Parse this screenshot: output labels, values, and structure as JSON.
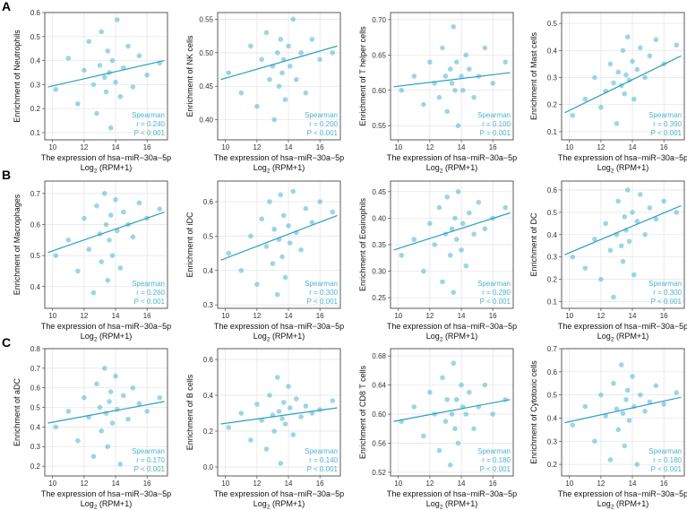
{
  "chart_data": [
    {
      "type": "scatter",
      "panel": "A",
      "ylabel": "Enrichment of Neutrophils",
      "xlabel": "The expression of hsa−miR−30a−5p",
      "xlabel_2": {
        "base": "Log",
        "sub": "2",
        "rest": " (RPM+1)"
      },
      "stat_method": "Spearman",
      "stat_r": "r = 0.240",
      "stat_p": "P < 0.001",
      "color": "#4fb3cf",
      "line_color": "#2a9fc6",
      "xlim": [
        9.5,
        17.3
      ],
      "xticks": [
        10,
        12,
        14,
        16
      ],
      "ylim": [
        0.07,
        0.6
      ],
      "yticks": [
        0.1,
        0.2,
        0.3,
        0.4,
        0.5,
        0.6
      ],
      "x": [
        10.2,
        11.0,
        11.6,
        12.0,
        12.3,
        12.6,
        12.8,
        13.0,
        13.1,
        13.3,
        13.4,
        13.5,
        13.6,
        13.7,
        13.8,
        14.0,
        14.1,
        14.3,
        14.5,
        14.8,
        15.1,
        15.5,
        16.0,
        16.8
      ],
      "y": [
        0.28,
        0.41,
        0.22,
        0.36,
        0.48,
        0.3,
        0.18,
        0.38,
        0.52,
        0.33,
        0.27,
        0.44,
        0.35,
        0.12,
        0.4,
        0.31,
        0.57,
        0.25,
        0.37,
        0.46,
        0.29,
        0.42,
        0.34,
        0.39
      ],
      "fit": {
        "x": [
          9.7,
          17.1
        ],
        "y": [
          0.29,
          0.4
        ]
      }
    },
    {
      "type": "scatter",
      "ylabel": "Enrichment of NK cells",
      "xlabel": "The expression of hsa−miR−30a−5p",
      "xlabel_2": {
        "base": "Log",
        "sub": "2",
        "rest": " (RPM+1)"
      },
      "stat_method": "Spearman",
      "stat_r": "r = 0.200",
      "stat_p": "P < 0.001",
      "color": "#4fb3cf",
      "line_color": "#2a9fc6",
      "xlim": [
        9.5,
        17.3
      ],
      "xticks": [
        10,
        12,
        14,
        16
      ],
      "ylim": [
        0.37,
        0.56
      ],
      "yticks": [
        {
          "value": 0.4,
          "label": "0.40"
        },
        0.45,
        {
          "value": 0.5,
          "label": "0.50"
        },
        0.55
      ],
      "x": [
        10.2,
        11.0,
        11.6,
        12.0,
        12.3,
        12.6,
        12.8,
        13.0,
        13.1,
        13.3,
        13.4,
        13.5,
        13.6,
        13.7,
        13.8,
        14.0,
        14.1,
        14.3,
        14.5,
        14.8,
        15.1,
        15.5,
        16.0,
        16.8
      ],
      "y": [
        0.47,
        0.44,
        0.51,
        0.42,
        0.49,
        0.53,
        0.46,
        0.48,
        0.4,
        0.5,
        0.45,
        0.52,
        0.47,
        0.49,
        0.43,
        0.51,
        0.48,
        0.55,
        0.46,
        0.5,
        0.44,
        0.52,
        0.49,
        0.5
      ],
      "fit": {
        "x": [
          9.7,
          17.1
        ],
        "y": [
          0.46,
          0.51
        ]
      }
    },
    {
      "type": "scatter",
      "ylabel": "Enrichment of T helper cells",
      "xlabel": "The expression of hsa−miR−30a−5p",
      "xlabel_2": {
        "base": "Log",
        "sub": "2",
        "rest": " (RPM+1)"
      },
      "stat_method": "Spearman",
      "stat_r": "r = 0.100",
      "stat_p": "P = 0.001",
      "color": "#4fb3cf",
      "line_color": "#2a9fc6",
      "xlim": [
        9.5,
        17.3
      ],
      "xticks": [
        10,
        12,
        14,
        16
      ],
      "ylim": [
        0.53,
        0.71
      ],
      "yticks": [
        0.55,
        {
          "value": 0.6,
          "label": "0.60"
        },
        0.65,
        {
          "value": 0.7,
          "label": "0.70"
        }
      ],
      "x": [
        10.2,
        11.0,
        11.6,
        12.0,
        12.3,
        12.6,
        12.8,
        13.0,
        13.1,
        13.3,
        13.4,
        13.5,
        13.6,
        13.7,
        13.8,
        14.0,
        14.1,
        14.3,
        14.5,
        14.8,
        15.1,
        15.5,
        16.0,
        16.8
      ],
      "y": [
        0.6,
        0.62,
        0.58,
        0.64,
        0.61,
        0.59,
        0.66,
        0.62,
        0.57,
        0.63,
        0.61,
        0.69,
        0.6,
        0.64,
        0.55,
        0.62,
        0.6,
        0.65,
        0.63,
        0.59,
        0.62,
        0.66,
        0.61,
        0.64
      ],
      "fit": {
        "x": [
          9.7,
          17.1
        ],
        "y": [
          0.605,
          0.625
        ]
      }
    },
    {
      "type": "scatter",
      "ylabel": "Enrichment of Mast cells",
      "xlabel": "The expression of hsa−miR−30a−5p",
      "xlabel_2": {
        "base": "Log",
        "sub": "2",
        "rest": " (RPM+1)"
      },
      "stat_method": "Spearman",
      "stat_r": "r = 0.390",
      "stat_p": "P < 0.001",
      "color": "#4fb3cf",
      "line_color": "#2a9fc6",
      "xlim": [
        9.5,
        17.3
      ],
      "xticks": [
        10,
        12,
        14,
        16
      ],
      "ylim": [
        0.07,
        0.54
      ],
      "yticks": [
        0.1,
        0.2,
        0.3,
        0.4,
        0.5
      ],
      "x": [
        10.2,
        11.0,
        11.6,
        12.0,
        12.3,
        12.6,
        12.8,
        13.0,
        13.1,
        13.3,
        13.4,
        13.5,
        13.6,
        13.7,
        13.8,
        14.0,
        14.1,
        14.3,
        14.5,
        14.8,
        15.1,
        15.5,
        16.0,
        16.8
      ],
      "y": [
        0.16,
        0.22,
        0.3,
        0.19,
        0.25,
        0.35,
        0.28,
        0.13,
        0.32,
        0.27,
        0.4,
        0.24,
        0.31,
        0.45,
        0.29,
        0.36,
        0.22,
        0.33,
        0.41,
        0.3,
        0.38,
        0.44,
        0.35,
        0.42
      ],
      "fit": {
        "x": [
          9.7,
          17.1
        ],
        "y": [
          0.17,
          0.38
        ]
      }
    },
    {
      "type": "scatter",
      "panel": "B",
      "ylabel": "Enrichment of Macrophages",
      "xlabel": "The expression of hsa−miR−30a−5p",
      "xlabel_2": {
        "base": "Log",
        "sub": "2",
        "rest": " (RPM+1)"
      },
      "stat_method": "Spearman",
      "stat_r": "r = 0.260",
      "stat_p": "P < 0.001",
      "color": "#4fb3cf",
      "line_color": "#2a9fc6",
      "xlim": [
        9.5,
        17.3
      ],
      "xticks": [
        10,
        12,
        14,
        16
      ],
      "ylim": [
        0.33,
        0.74
      ],
      "yticks": [
        0.4,
        0.5,
        0.6,
        0.7
      ],
      "x": [
        10.2,
        11.0,
        11.6,
        12.0,
        12.3,
        12.6,
        12.8,
        13.0,
        13.1,
        13.3,
        13.4,
        13.5,
        13.6,
        13.7,
        13.8,
        14.0,
        14.1,
        14.3,
        14.5,
        14.8,
        15.1,
        15.5,
        16.0,
        16.8
      ],
      "y": [
        0.5,
        0.55,
        0.45,
        0.62,
        0.52,
        0.38,
        0.66,
        0.57,
        0.48,
        0.7,
        0.6,
        0.42,
        0.55,
        0.63,
        0.5,
        0.68,
        0.58,
        0.46,
        0.64,
        0.6,
        0.56,
        0.67,
        0.62,
        0.65
      ],
      "fit": {
        "x": [
          9.7,
          17.1
        ],
        "y": [
          0.51,
          0.64
        ]
      }
    },
    {
      "type": "scatter",
      "ylabel": "Enrichment of iDC",
      "xlabel": "The expression of hsa−miR−30a−5p",
      "xlabel_2": {
        "base": "Log",
        "sub": "2",
        "rest": " (RPM+1)"
      },
      "stat_method": "Spearman",
      "stat_r": "r = 0.300",
      "stat_p": "P < 0.001",
      "color": "#4fb3cf",
      "line_color": "#2a9fc6",
      "xlim": [
        9.5,
        17.3
      ],
      "xticks": [
        10,
        12,
        14,
        16
      ],
      "ylim": [
        0.29,
        0.66
      ],
      "yticks": [
        0.3,
        0.4,
        0.5,
        0.6
      ],
      "x": [
        10.2,
        11.0,
        11.6,
        12.0,
        12.3,
        12.6,
        12.8,
        13.0,
        13.1,
        13.3,
        13.4,
        13.5,
        13.6,
        13.7,
        13.8,
        14.0,
        14.1,
        14.3,
        14.5,
        14.8,
        15.1,
        15.5,
        16.0,
        16.8
      ],
      "y": [
        0.45,
        0.4,
        0.5,
        0.36,
        0.55,
        0.47,
        0.6,
        0.42,
        0.52,
        0.33,
        0.49,
        0.62,
        0.44,
        0.56,
        0.38,
        0.53,
        0.48,
        0.63,
        0.51,
        0.46,
        0.58,
        0.54,
        0.6,
        0.57
      ],
      "fit": {
        "x": [
          9.7,
          17.1
        ],
        "y": [
          0.43,
          0.56
        ]
      }
    },
    {
      "type": "scatter",
      "ylabel": "Enrichment of Eosinophils",
      "xlabel": "The expression of hsa−miR−30a−5p",
      "xlabel_2": {
        "base": "Log",
        "sub": "2",
        "rest": " (RPM+1)"
      },
      "stat_method": "Spearman",
      "stat_r": "r = 0.280",
      "stat_p": "P < 0.001",
      "color": "#4fb3cf",
      "line_color": "#2a9fc6",
      "xlim": [
        9.5,
        17.3
      ],
      "xticks": [
        10,
        12,
        14,
        16
      ],
      "ylim": [
        0.23,
        0.47
      ],
      "yticks": [
        0.25,
        {
          "value": 0.3,
          "label": "0.30"
        },
        0.35,
        {
          "value": 0.4,
          "label": "0.40"
        },
        0.45
      ],
      "x": [
        10.2,
        11.0,
        11.6,
        12.0,
        12.3,
        12.6,
        12.8,
        13.0,
        13.1,
        13.3,
        13.4,
        13.5,
        13.6,
        13.7,
        13.8,
        14.0,
        14.1,
        14.3,
        14.5,
        14.8,
        15.1,
        15.5,
        16.0,
        16.8
      ],
      "y": [
        0.33,
        0.36,
        0.3,
        0.39,
        0.35,
        0.42,
        0.28,
        0.37,
        0.44,
        0.33,
        0.38,
        0.26,
        0.4,
        0.36,
        0.45,
        0.34,
        0.39,
        0.31,
        0.41,
        0.37,
        0.43,
        0.38,
        0.4,
        0.42
      ],
      "fit": {
        "x": [
          9.7,
          17.1
        ],
        "y": [
          0.34,
          0.41
        ]
      }
    },
    {
      "type": "scatter",
      "ylabel": "Enrichment of DC",
      "xlabel": "The expression of hsa−miR−30a−5p",
      "xlabel_2": {
        "base": "Log",
        "sub": "2",
        "rest": " (RPM+1)"
      },
      "stat_method": "Spearman",
      "stat_r": "r = 0.300",
      "stat_p": "P < 0.001",
      "color": "#4fb3cf",
      "line_color": "#2a9fc6",
      "xlim": [
        9.5,
        17.3
      ],
      "xticks": [
        10,
        12,
        14,
        16
      ],
      "ylim": [
        0.07,
        0.64
      ],
      "yticks": [
        0.1,
        0.2,
        0.3,
        0.4,
        0.5,
        0.6
      ],
      "x": [
        10.2,
        11.0,
        11.6,
        12.0,
        12.3,
        12.6,
        12.8,
        13.0,
        13.1,
        13.3,
        13.4,
        13.5,
        13.6,
        13.7,
        13.8,
        14.0,
        14.1,
        14.3,
        14.5,
        14.8,
        15.1,
        15.5,
        16.0,
        16.8
      ],
      "y": [
        0.3,
        0.25,
        0.38,
        0.2,
        0.45,
        0.33,
        0.12,
        0.4,
        0.55,
        0.35,
        0.28,
        0.48,
        0.42,
        0.6,
        0.37,
        0.5,
        0.22,
        0.46,
        0.58,
        0.4,
        0.52,
        0.47,
        0.55,
        0.5
      ],
      "fit": {
        "x": [
          9.7,
          17.1
        ],
        "y": [
          0.31,
          0.53
        ]
      }
    },
    {
      "type": "scatter",
      "panel": "C",
      "ylabel": "Enrichment of aDC",
      "xlabel": "The expression of hsa−miR−30a−5p",
      "xlabel_2": {
        "base": "Log",
        "sub": "2",
        "rest": " (RPM+1)"
      },
      "stat_method": "Spearman",
      "stat_r": "r = 0.170",
      "stat_p": "P < 0.001",
      "color": "#4fb3cf",
      "line_color": "#2a9fc6",
      "xlim": [
        9.5,
        17.3
      ],
      "xticks": [
        10,
        12,
        14,
        16
      ],
      "ylim": [
        0.15,
        0.8
      ],
      "yticks": [
        0.2,
        0.3,
        0.4,
        0.5,
        0.6,
        0.7,
        0.8
      ],
      "x": [
        10.2,
        11.0,
        11.6,
        12.0,
        12.3,
        12.6,
        12.8,
        13.0,
        13.1,
        13.3,
        13.4,
        13.5,
        13.6,
        13.7,
        13.8,
        14.0,
        14.1,
        14.3,
        14.5,
        14.8,
        15.1,
        15.5,
        16.0,
        16.8
      ],
      "y": [
        0.4,
        0.48,
        0.33,
        0.55,
        0.45,
        0.25,
        0.62,
        0.5,
        0.38,
        0.7,
        0.47,
        0.3,
        0.53,
        0.58,
        0.42,
        0.66,
        0.49,
        0.21,
        0.56,
        0.44,
        0.6,
        0.52,
        0.48,
        0.55
      ],
      "fit": {
        "x": [
          9.7,
          17.1
        ],
        "y": [
          0.42,
          0.53
        ]
      }
    },
    {
      "type": "scatter",
      "ylabel": "Enrichment of B cells",
      "xlabel": "The expression of hsa−miR−30a−5p",
      "xlabel_2": {
        "base": "Log",
        "sub": "2",
        "rest": " (RPM+1)"
      },
      "stat_method": "Spearman",
      "stat_r": "r = 0.140",
      "stat_p": "P < 0.001",
      "color": "#4fb3cf",
      "line_color": "#2a9fc6",
      "xlim": [
        9.5,
        17.3
      ],
      "xticks": [
        10,
        12,
        14,
        16
      ],
      "ylim": [
        -0.05,
        0.66
      ],
      "yticks": [
        {
          "value": 0,
          "label": "0.0"
        },
        0.2,
        0.4,
        0.6
      ],
      "x": [
        10.2,
        11.0,
        11.6,
        12.0,
        12.3,
        12.6,
        12.8,
        13.0,
        13.1,
        13.3,
        13.4,
        13.5,
        13.6,
        13.7,
        13.8,
        14.0,
        14.1,
        14.3,
        14.5,
        14.8,
        15.1,
        15.5,
        16.0,
        16.8
      ],
      "y": [
        0.22,
        0.3,
        0.15,
        0.35,
        0.26,
        0.1,
        0.4,
        0.29,
        0.2,
        0.5,
        0.31,
        0.02,
        0.27,
        0.36,
        0.24,
        0.45,
        0.33,
        0.18,
        0.38,
        0.28,
        0.34,
        0.3,
        0.32,
        0.37
      ],
      "fit": {
        "x": [
          9.7,
          17.1
        ],
        "y": [
          0.24,
          0.33
        ]
      }
    },
    {
      "type": "scatter",
      "ylabel": "Enrichment of CD8 T cells",
      "xlabel": "The expression of hsa−miR−30a−5p",
      "xlabel_2": {
        "base": "Log",
        "sub": "2",
        "rest": " (RPM+1)"
      },
      "stat_method": "Spearman",
      "stat_r": "r = 0.180",
      "stat_p": "P < 0.001",
      "color": "#4fb3cf",
      "line_color": "#2a9fc6",
      "xlim": [
        9.5,
        17.3
      ],
      "xticks": [
        10,
        12,
        14,
        16
      ],
      "ylim": [
        0.515,
        0.69
      ],
      "yticks": [
        0.52,
        0.56,
        {
          "value": 0.6,
          "label": "0.60"
        },
        0.64,
        0.68
      ],
      "x": [
        10.2,
        11.0,
        11.6,
        12.0,
        12.3,
        12.6,
        12.8,
        13.0,
        13.1,
        13.3,
        13.4,
        13.5,
        13.6,
        13.7,
        13.8,
        14.0,
        14.1,
        14.3,
        14.5,
        14.8,
        15.1,
        15.5,
        16.0,
        16.8
      ],
      "y": [
        0.59,
        0.61,
        0.57,
        0.63,
        0.6,
        0.55,
        0.65,
        0.59,
        0.62,
        0.53,
        0.6,
        0.67,
        0.58,
        0.62,
        0.56,
        0.64,
        0.61,
        0.6,
        0.63,
        0.58,
        0.61,
        0.64,
        0.6,
        0.62
      ],
      "fit": {
        "x": [
          9.7,
          17.1
        ],
        "y": [
          0.59,
          0.62
        ]
      }
    },
    {
      "type": "scatter",
      "ylabel": "Enrichment of Cytotoxic cells",
      "xlabel": "The expression of hsa−miR−30a−5p",
      "xlabel_2": {
        "base": "Log",
        "sub": "2",
        "rest": " (RPM+1)"
      },
      "stat_method": "Spearman",
      "stat_r": "r = 0.180",
      "stat_p": "P < 0.001",
      "color": "#4fb3cf",
      "line_color": "#2a9fc6",
      "xlim": [
        9.5,
        17.3
      ],
      "xticks": [
        10,
        12,
        14,
        16
      ],
      "ylim": [
        0.15,
        0.7
      ],
      "yticks": [
        0.2,
        0.3,
        0.4,
        0.5,
        0.6,
        0.7
      ],
      "x": [
        10.2,
        11.0,
        11.6,
        12.0,
        12.3,
        12.6,
        12.8,
        13.0,
        13.1,
        13.3,
        13.4,
        13.5,
        13.6,
        13.7,
        13.8,
        14.0,
        14.1,
        14.3,
        14.5,
        14.8,
        15.1,
        15.5,
        16.0,
        16.8
      ],
      "y": [
        0.37,
        0.45,
        0.3,
        0.5,
        0.41,
        0.22,
        0.55,
        0.44,
        0.35,
        0.63,
        0.42,
        0.28,
        0.48,
        0.52,
        0.39,
        0.58,
        0.45,
        0.2,
        0.5,
        0.43,
        0.47,
        0.54,
        0.46,
        0.51
      ],
      "fit": {
        "x": [
          9.7,
          17.1
        ],
        "y": [
          0.38,
          0.49
        ]
      }
    }
  ]
}
